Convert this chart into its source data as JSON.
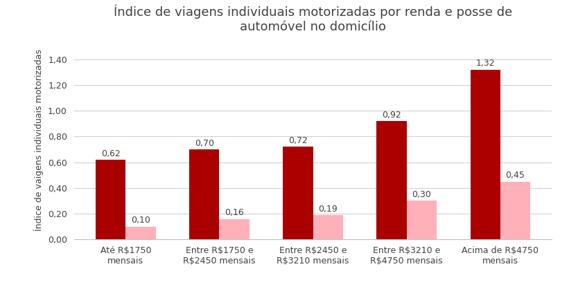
{
  "title": "Índice de viagens individuais motorizadas por renda e posse de\nautomóvel no domicílio",
  "ylabel": "Índice de vaigens individuais motorizadas",
  "categories": [
    "Até R$1750\nmensais",
    "Entre R$1750 e\nR$2450 mensais",
    "Entre R$2450 e\nR$3210 mensais",
    "Entre R$3210 e\nR$4750 mensais",
    "Acima de R$4750\nmensais"
  ],
  "com_auto": [
    0.62,
    0.7,
    0.72,
    0.92,
    1.32
  ],
  "sem_auto": [
    0.1,
    0.16,
    0.19,
    0.3,
    0.45
  ],
  "color_com_auto": "#AA0000",
  "color_sem_auto": "#FFB0B8",
  "ylim": [
    0,
    1.55
  ],
  "yticks": [
    0.0,
    0.2,
    0.4,
    0.6,
    0.8,
    1.0,
    1.2,
    1.4
  ],
  "ytick_labels": [
    "0,00",
    "0,20",
    "0,40",
    "0,60",
    "0,80",
    "1,00",
    "1,20",
    "1,40"
  ],
  "bar_width": 0.32,
  "annotation_fontsize": 9,
  "title_fontsize": 13,
  "ylabel_fontsize": 9,
  "tick_fontsize": 9,
  "legend_fontsize": 10
}
